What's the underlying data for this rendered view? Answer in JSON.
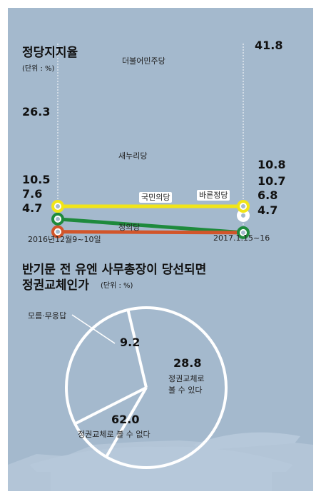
{
  "chart_data": [
    {
      "type": "line",
      "title": "정당지지율",
      "unit_note": "(단위 : %)",
      "categories": [
        "2016년12월9~10일",
        "2017.1.15~16"
      ],
      "series": [
        {
          "name": "더불어민주당",
          "values": [
            26.3,
            41.8
          ],
          "color": "#ffffff",
          "labels": [
            "26.3",
            "41.8"
          ]
        },
        {
          "name": "새누리당",
          "values": [
            10.5,
            null
          ],
          "color": "#d2552a",
          "labels": [
            "10.5",
            ""
          ]
        },
        {
          "name": "바른정당",
          "values": [
            null,
            6.8
          ],
          "color": "#ffffff",
          "labels": [
            "",
            "6.8"
          ]
        },
        {
          "name": "국민의당",
          "values": [
            7.6,
            10.7
          ],
          "color": "#1e8a3c",
          "labels": [
            "7.6",
            "10.7"
          ]
        },
        {
          "name": "정의당",
          "values": [
            4.7,
            4.7
          ],
          "color": "#f1e518",
          "labels": [
            "4.7",
            "4.7"
          ]
        }
      ],
      "extra_labels": [
        "10.8"
      ],
      "guide_color": "#ffffff"
    },
    {
      "type": "pie",
      "title_line1": "반기문 전 유엔 사무총장이 당선되면",
      "title_line2": "정권교체인가",
      "unit_note": "(단위 : %)",
      "slices": [
        {
          "label": "모름·무응답",
          "value": 9.2,
          "value_label": "9.2"
        },
        {
          "label_line1": "정권교체로",
          "label_line2": "볼 수 있다",
          "value": 28.8,
          "value_label": "28.8"
        },
        {
          "label": "정권교체로 볼 수 없다",
          "value": 62.0,
          "value_label": "62.0"
        }
      ],
      "stroke_color": "#ffffff"
    }
  ]
}
